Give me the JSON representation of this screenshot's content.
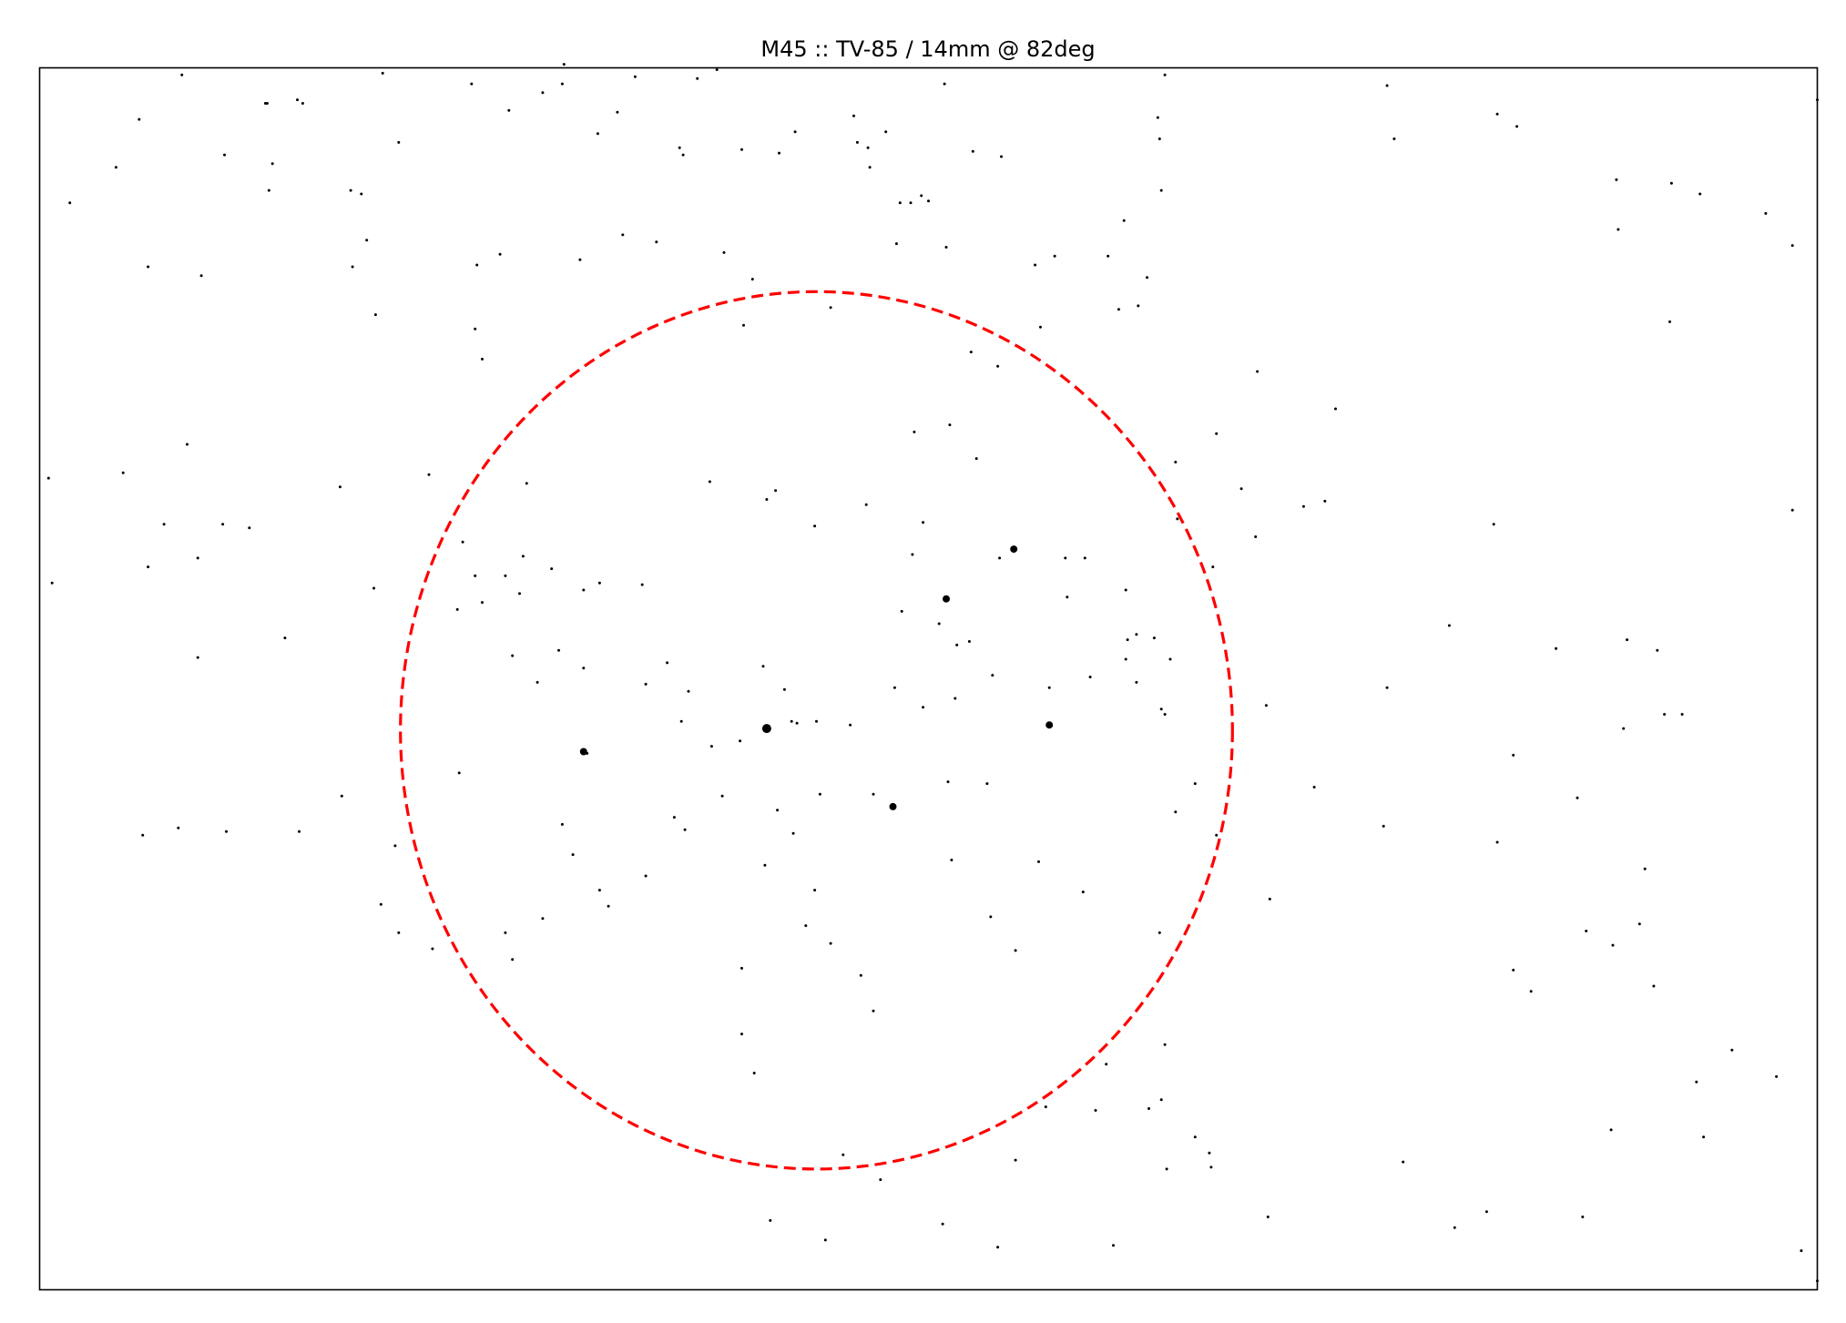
{
  "chart_data": {
    "type": "scatter",
    "title": "M45 :: TV-85 / 14mm @ 82deg",
    "xlabel": "",
    "ylabel": "",
    "xlim": [
      0,
      1000
    ],
    "ylim": [
      0,
      688
    ],
    "grid": false,
    "axes_ticks": false,
    "colors": {
      "stars": "#000000",
      "fov": "#ff0000",
      "frame": "#000000"
    },
    "fov_circle": {
      "cx": 437,
      "cy": 315,
      "rx": 234,
      "ry": 247,
      "style": "dashed"
    },
    "bright_stars": [
      {
        "x": 409,
        "y": 316,
        "size": 5
      },
      {
        "x": 306,
        "y": 303,
        "size": 4
      },
      {
        "x": 568,
        "y": 318,
        "size": 4
      },
      {
        "x": 510,
        "y": 389,
        "size": 4
      },
      {
        "x": 548,
        "y": 417,
        "size": 4
      },
      {
        "x": 480,
        "y": 272,
        "size": 4
      }
    ],
    "faint_stars": [
      [
        80,
        684
      ],
      [
        128,
        668
      ],
      [
        145,
        670
      ],
      [
        193,
        685
      ],
      [
        243,
        679
      ],
      [
        283,
        674
      ],
      [
        294,
        679
      ],
      [
        335,
        683
      ],
      [
        370,
        682
      ],
      [
        509,
        679
      ],
      [
        633,
        684
      ],
      [
        43,
        632
      ],
      [
        56,
        659
      ],
      [
        129,
        619
      ],
      [
        148,
        668
      ],
      [
        175,
        619
      ],
      [
        181,
        617
      ],
      [
        202,
        646
      ],
      [
        264,
        664
      ],
      [
        325,
        663
      ],
      [
        360,
        643
      ],
      [
        395,
        642
      ],
      [
        381,
        687
      ],
      [
        425,
        652
      ],
      [
        460,
        646
      ],
      [
        496,
        616
      ],
      [
        484,
        612
      ],
      [
        467,
        632
      ],
      [
        416,
        640
      ],
      [
        541,
        638
      ],
      [
        631,
        619
      ],
      [
        629,
        660
      ],
      [
        630,
        648
      ],
      [
        17,
        612
      ],
      [
        104,
        639
      ],
      [
        184,
        591
      ],
      [
        246,
        577
      ],
      [
        259,
        583
      ],
      [
        295,
        690
      ],
      [
        314,
        651
      ],
      [
        362,
        639
      ],
      [
        385,
        584
      ],
      [
        401,
        569
      ],
      [
        458,
        661
      ],
      [
        476,
        652
      ],
      [
        466,
        643
      ],
      [
        482,
        589
      ],
      [
        490,
        612
      ],
      [
        500,
        613
      ],
      [
        510,
        587
      ],
      [
        525,
        641
      ],
      [
        560,
        577
      ],
      [
        571,
        582
      ],
      [
        601,
        582
      ],
      [
        610,
        602
      ],
      [
        623,
        570
      ],
      [
        758,
        678
      ],
      [
        820,
        662
      ],
      [
        831,
        655
      ],
      [
        888,
        597
      ],
      [
        918,
        623
      ],
      [
        934,
        617
      ],
      [
        971,
        606
      ],
      [
        986,
        588
      ],
      [
        1000,
        670
      ],
      [
        61,
        576
      ],
      [
        91,
        571
      ],
      [
        127,
        668
      ],
      [
        131,
        634
      ],
      [
        176,
        576
      ],
      [
        189,
        549
      ],
      [
        249,
        524
      ],
      [
        245,
        541
      ],
      [
        304,
        580
      ],
      [
        328,
        594
      ],
      [
        347,
        590
      ],
      [
        396,
        543
      ],
      [
        445,
        553
      ],
      [
        492,
        483
      ],
      [
        512,
        487
      ],
      [
        527,
        468
      ],
      [
        524,
        528
      ],
      [
        539,
        520
      ],
      [
        563,
        542
      ],
      [
        607,
        552
      ],
      [
        618,
        554
      ],
      [
        639,
        466
      ],
      [
        662,
        482
      ],
      [
        685,
        517
      ],
      [
        729,
        496
      ],
      [
        711,
        441
      ],
      [
        762,
        648
      ],
      [
        887,
        625
      ],
      [
        917,
        545
      ],
      [
        986,
        439
      ],
      [
        5,
        457
      ],
      [
        47,
        460
      ],
      [
        70,
        431
      ],
      [
        83,
        476
      ],
      [
        103,
        431
      ],
      [
        118,
        429
      ],
      [
        169,
        452
      ],
      [
        219,
        459
      ],
      [
        238,
        421
      ],
      [
        245,
        402
      ],
      [
        274,
        454
      ],
      [
        262,
        402
      ],
      [
        306,
        394
      ],
      [
        339,
        397
      ],
      [
        377,
        455
      ],
      [
        409,
        445
      ],
      [
        414,
        450
      ],
      [
        436,
        430
      ],
      [
        465,
        442
      ],
      [
        497,
        432
      ],
      [
        491,
        414
      ],
      [
        506,
        375
      ],
      [
        516,
        363
      ],
      [
        540,
        412
      ],
      [
        577,
        412
      ],
      [
        588,
        412
      ],
      [
        611,
        394
      ],
      [
        627,
        367
      ],
      [
        640,
        434
      ],
      [
        660,
        407
      ],
      [
        676,
        451
      ],
      [
        684,
        424
      ],
      [
        818,
        431
      ],
      [
        910,
        360
      ],
      [
        865,
        277
      ],
      [
        829,
        301
      ],
      [
        793,
        374
      ],
      [
        723,
        444
      ],
      [
        7,
        398
      ],
      [
        61,
        407
      ],
      [
        89,
        412
      ],
      [
        89,
        356
      ],
      [
        138,
        367
      ],
      [
        188,
        395
      ],
      [
        272,
        413
      ],
      [
        235,
        383
      ],
      [
        288,
        406
      ],
      [
        315,
        398
      ],
      [
        341,
        341
      ],
      [
        365,
        337
      ],
      [
        353,
        353
      ],
      [
        306,
        350
      ],
      [
        292,
        360
      ],
      [
        280,
        342
      ],
      [
        270,
        392
      ],
      [
        249,
        387
      ],
      [
        266,
        357
      ],
      [
        308,
        302
      ],
      [
        437,
        320
      ],
      [
        394,
        309
      ],
      [
        423,
        320
      ],
      [
        456,
        318
      ],
      [
        439,
        279
      ],
      [
        384,
        278
      ],
      [
        378,
        306
      ],
      [
        357,
        266
      ],
      [
        361,
        320
      ],
      [
        426,
        319
      ],
      [
        419,
        338
      ],
      [
        407,
        351
      ],
      [
        481,
        339
      ],
      [
        497,
        328
      ],
      [
        485,
        382
      ],
      [
        511,
        286
      ],
      [
        515,
        333
      ],
      [
        536,
        346
      ],
      [
        533,
        285
      ],
      [
        523,
        365
      ],
      [
        611,
        355
      ],
      [
        617,
        369
      ],
      [
        591,
        345
      ],
      [
        568,
        339
      ],
      [
        578,
        390
      ],
      [
        612,
        366
      ],
      [
        617,
        342
      ],
      [
        631,
        327
      ],
      [
        636,
        355
      ],
      [
        639,
        269
      ],
      [
        633,
        324
      ],
      [
        650,
        285
      ],
      [
        690,
        329
      ],
      [
        717,
        283
      ],
      [
        758,
        339
      ],
      [
        820,
        252
      ],
      [
        853,
        361
      ],
      [
        893,
        366
      ],
      [
        924,
        324
      ],
      [
        914,
        324
      ],
      [
        58,
        256
      ],
      [
        78,
        260
      ],
      [
        105,
        258
      ],
      [
        146,
        258
      ],
      [
        170,
        278
      ],
      [
        192,
        217
      ],
      [
        200,
        250
      ],
      [
        202,
        201
      ],
      [
        221,
        192
      ],
      [
        236,
        291
      ],
      [
        262,
        201
      ],
      [
        266,
        186
      ],
      [
        294,
        262
      ],
      [
        300,
        245
      ],
      [
        283,
        209
      ],
      [
        315,
        225
      ],
      [
        320,
        216
      ],
      [
        341,
        233
      ],
      [
        363,
        259
      ],
      [
        408,
        239
      ],
      [
        415,
        270
      ],
      [
        424,
        257
      ],
      [
        445,
        195
      ],
      [
        431,
        205
      ],
      [
        436,
        225
      ],
      [
        395,
        181
      ],
      [
        395,
        144
      ],
      [
        402,
        122
      ],
      [
        469,
        157
      ],
      [
        462,
        177
      ],
      [
        469,
        279
      ],
      [
        513,
        242
      ],
      [
        535,
        210
      ],
      [
        549,
        191
      ],
      [
        562,
        241
      ],
      [
        587,
        224
      ],
      [
        633,
        138
      ],
      [
        630,
        201
      ],
      [
        600,
        127
      ],
      [
        662,
        256
      ],
      [
        692,
        220
      ],
      [
        756,
        261
      ],
      [
        829,
        180
      ],
      [
        839,
        168
      ],
      [
        870,
        202
      ],
      [
        900,
        206
      ],
      [
        903,
        237
      ],
      [
        891,
        316
      ],
      [
        885,
        194
      ],
      [
        908,
        171
      ],
      [
        650,
        86
      ],
      [
        658,
        77
      ],
      [
        631,
        107
      ],
      [
        594,
        101
      ],
      [
        566,
        103
      ],
      [
        452,
        76
      ],
      [
        411,
        39
      ],
      [
        442,
        28
      ],
      [
        473,
        62
      ],
      [
        508,
        37
      ],
      [
        539,
        24
      ],
      [
        549,
        73
      ],
      [
        604,
        25
      ],
      [
        624,
        102
      ],
      [
        634,
        68
      ],
      [
        659,
        69
      ],
      [
        691,
        41
      ],
      [
        767,
        72
      ],
      [
        796,
        35
      ],
      [
        814,
        44
      ],
      [
        868,
        41
      ],
      [
        884,
        90
      ],
      [
        932,
        117
      ],
      [
        936,
        86
      ],
      [
        952,
        135
      ],
      [
        977,
        120
      ],
      [
        991,
        22
      ],
      [
        1000,
        5
      ]
    ]
  }
}
